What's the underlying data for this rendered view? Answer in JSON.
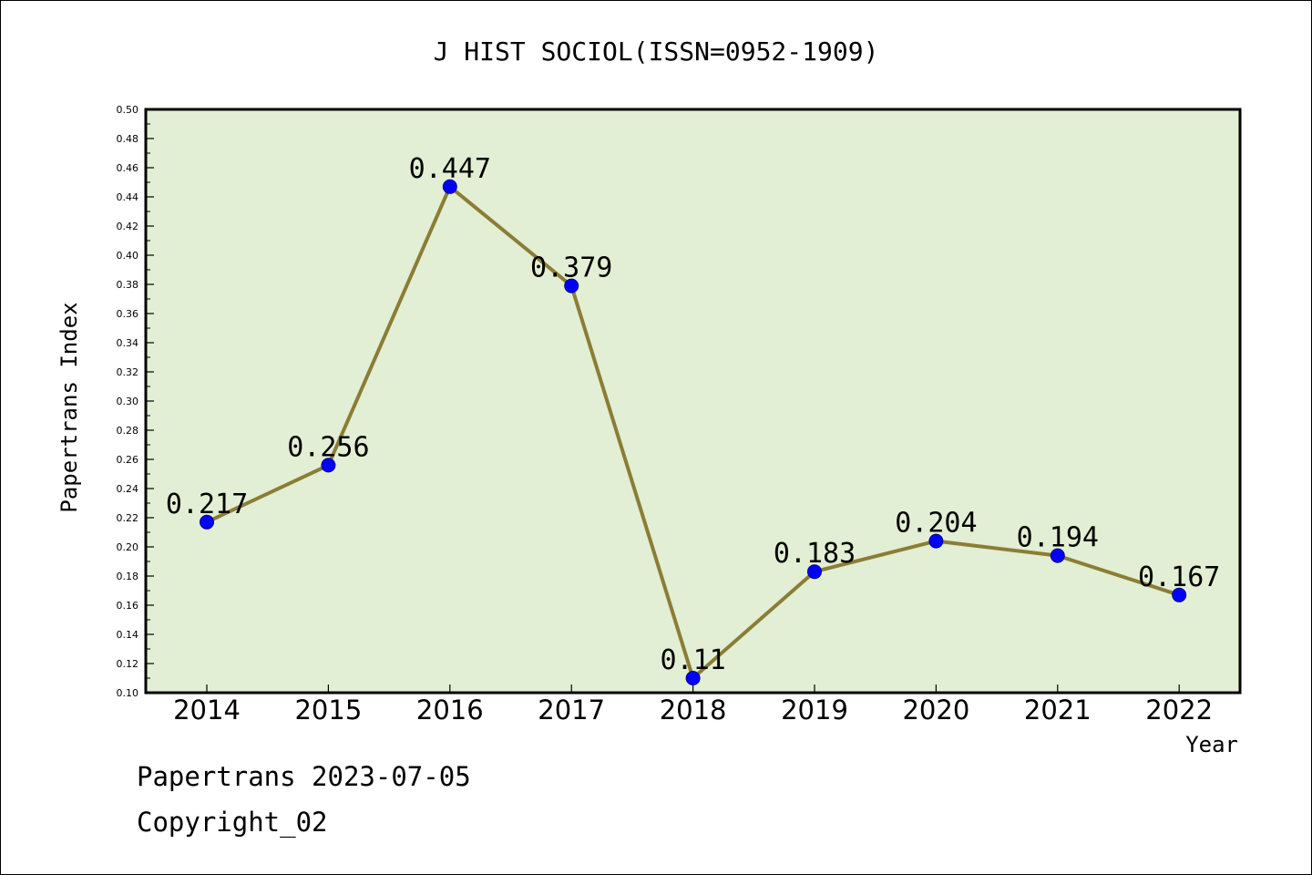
{
  "chart_data": {
    "type": "line",
    "title": "J HIST SOCIOL(ISSN=0952-1909)",
    "xlabel": "Year",
    "ylabel": "Papertrans Index",
    "categories": [
      "2014",
      "2015",
      "2016",
      "2017",
      "2018",
      "2019",
      "2020",
      "2021",
      "2022"
    ],
    "series": [
      {
        "values": [
          0.217,
          0.256,
          0.447,
          0.379,
          0.11,
          0.183,
          0.204,
          0.194,
          0.167
        ],
        "labels": [
          "0.217",
          "0.256",
          "0.447",
          "0.379",
          "0.11",
          "0.183",
          "0.204",
          "0.194",
          "0.167"
        ],
        "line_color": "#8b7d35",
        "marker_color": "#0000ff"
      }
    ],
    "ylim": [
      0.1,
      0.5
    ],
    "yticks": [
      "0.10",
      "0.12",
      "0.14",
      "0.16",
      "0.18",
      "0.20",
      "0.22",
      "0.24",
      "0.26",
      "0.28",
      "0.30",
      "0.32",
      "0.34",
      "0.36",
      "0.38",
      "0.40",
      "0.42",
      "0.44",
      "0.46",
      "0.48",
      "0.50"
    ],
    "plot_background": "#e2efd4",
    "grid": false,
    "legend": "none"
  },
  "footer": {
    "line1": "Papertrans 2023-07-05",
    "line2": "Copyright_02"
  }
}
